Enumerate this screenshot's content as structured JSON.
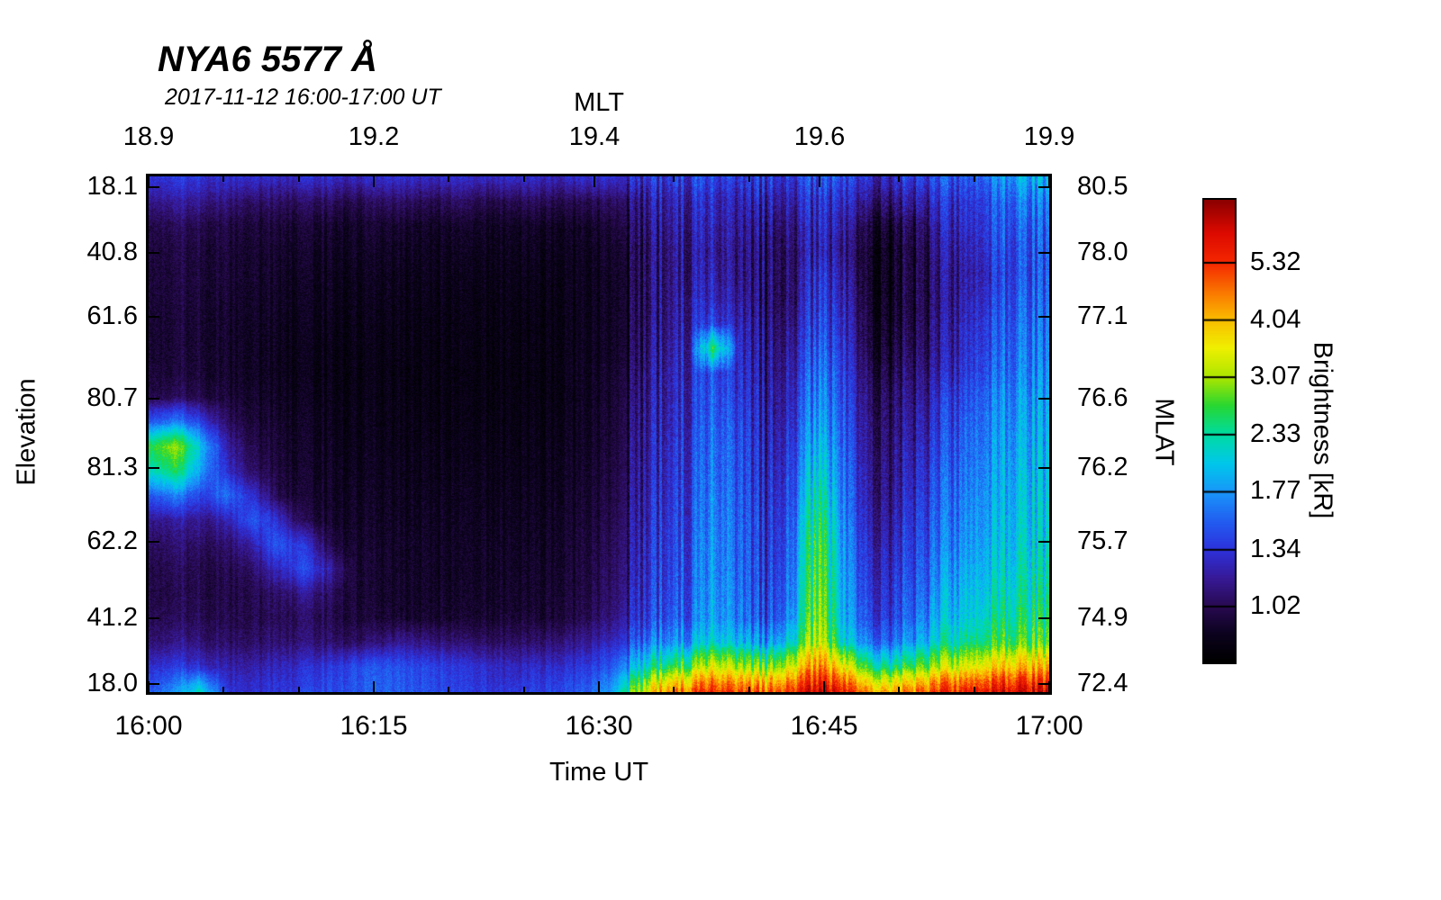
{
  "chart_data": {
    "type": "heatmap",
    "title": "NYA6 5577 Å",
    "subtitle": "2017-11-12 16:00-17:00 UT",
    "axes": {
      "top": {
        "label": "MLT",
        "ticks": [
          {
            "label": "18.9",
            "pos": 0.0
          },
          {
            "label": "19.2",
            "pos": 0.25
          },
          {
            "label": "19.4",
            "pos": 0.495
          },
          {
            "label": "19.6",
            "pos": 0.745
          },
          {
            "label": "19.9",
            "pos": 1.0
          }
        ]
      },
      "bottom": {
        "label": "Time UT",
        "ticks": [
          {
            "label": "16:00",
            "pos": 0.0
          },
          {
            "label": "16:15",
            "pos": 0.25
          },
          {
            "label": "16:30",
            "pos": 0.5
          },
          {
            "label": "16:45",
            "pos": 0.75
          },
          {
            "label": "17:00",
            "pos": 1.0
          }
        ]
      },
      "left": {
        "label": "Elevation",
        "ticks": [
          {
            "label": "18.1",
            "pos": 0.021
          },
          {
            "label": "40.8",
            "pos": 0.148
          },
          {
            "label": "61.6",
            "pos": 0.272
          },
          {
            "label": "80.7",
            "pos": 0.431
          },
          {
            "label": "81.3",
            "pos": 0.565
          },
          {
            "label": "62.2",
            "pos": 0.709
          },
          {
            "label": "41.2",
            "pos": 0.857
          },
          {
            "label": "18.0",
            "pos": 0.984
          }
        ]
      },
      "right": {
        "label": "MLAT",
        "ticks": [
          {
            "label": "80.5",
            "pos": 0.021
          },
          {
            "label": "78.0",
            "pos": 0.148
          },
          {
            "label": "77.1",
            "pos": 0.272
          },
          {
            "label": "76.6",
            "pos": 0.431
          },
          {
            "label": "76.2",
            "pos": 0.565
          },
          {
            "label": "75.7",
            "pos": 0.709
          },
          {
            "label": "74.9",
            "pos": 0.857
          },
          {
            "label": "72.4",
            "pos": 0.984
          }
        ]
      }
    },
    "colorbar": {
      "label": "Brightness [kR]",
      "scale": "log",
      "vmin": 0.78,
      "vmax": 7.2,
      "tick_values": [
        "5.32",
        "4.04",
        "3.07",
        "2.33",
        "1.77",
        "1.34",
        "1.02"
      ],
      "stops": [
        [
          0.0,
          0,
          0,
          0
        ],
        [
          0.06,
          12,
          3,
          30
        ],
        [
          0.119,
          40,
          10,
          80
        ],
        [
          0.18,
          55,
          25,
          150
        ],
        [
          0.243,
          45,
          50,
          220
        ],
        [
          0.3,
          35,
          90,
          240
        ],
        [
          0.367,
          25,
          150,
          250
        ],
        [
          0.43,
          0,
          200,
          235
        ],
        [
          0.494,
          0,
          220,
          160
        ],
        [
          0.555,
          40,
          215,
          50
        ],
        [
          0.615,
          170,
          230,
          0
        ],
        [
          0.68,
          240,
          240,
          0
        ],
        [
          0.74,
          250,
          190,
          0
        ],
        [
          0.8,
          250,
          120,
          0
        ],
        [
          0.864,
          245,
          40,
          0
        ],
        [
          0.93,
          220,
          10,
          0
        ],
        [
          1.0,
          140,
          0,
          0
        ]
      ]
    },
    "grid": {
      "comment": "Brightness in kR; rows top-to-bottom over elevation scan, cols left-to-right over 16:00-17:00 UT",
      "rows": 22,
      "cols": 36,
      "values": [
        [
          1.35,
          1.4,
          1.35,
          1.3,
          1.3,
          1.25,
          1.3,
          1.3,
          1.25,
          1.3,
          1.3,
          1.25,
          1.3,
          1.25,
          1.3,
          1.3,
          1.25,
          1.3,
          1.3,
          1.3,
          1.35,
          1.4,
          1.45,
          1.4,
          1.35,
          1.4,
          1.45,
          1.4,
          1.35,
          1.3,
          1.4,
          1.45,
          1.5,
          1.7,
          1.85,
          1.9
        ],
        [
          1.15,
          1.2,
          1.15,
          1.1,
          1.05,
          1.05,
          1.05,
          1.05,
          1.0,
          1.05,
          1.05,
          1.0,
          1.05,
          1.0,
          1.0,
          1.05,
          1.0,
          1.0,
          1.05,
          1.1,
          1.2,
          1.25,
          1.3,
          1.25,
          1.2,
          1.25,
          1.3,
          1.25,
          1.15,
          1.1,
          1.2,
          1.3,
          1.35,
          1.5,
          1.6,
          1.65
        ],
        [
          1.0,
          1.05,
          1.0,
          0.98,
          0.95,
          0.95,
          0.95,
          0.93,
          0.92,
          0.93,
          0.92,
          0.9,
          0.92,
          0.9,
          0.9,
          0.92,
          0.9,
          0.9,
          0.95,
          1.05,
          1.15,
          1.2,
          1.25,
          1.2,
          1.1,
          1.15,
          1.25,
          1.15,
          1.0,
          0.95,
          1.05,
          1.2,
          1.3,
          1.45,
          1.5,
          1.55
        ],
        [
          0.98,
          1.0,
          0.97,
          0.95,
          0.93,
          0.92,
          0.92,
          0.9,
          0.9,
          0.9,
          0.89,
          0.88,
          0.89,
          0.88,
          0.88,
          0.89,
          0.88,
          0.88,
          0.92,
          1.0,
          1.1,
          1.15,
          1.2,
          1.15,
          1.05,
          1.1,
          1.2,
          1.1,
          0.95,
          0.9,
          1.0,
          1.15,
          1.25,
          1.4,
          1.45,
          1.5
        ],
        [
          0.97,
          0.99,
          0.96,
          0.94,
          0.92,
          0.91,
          0.9,
          0.89,
          0.88,
          0.88,
          0.87,
          0.87,
          0.87,
          0.86,
          0.87,
          0.87,
          0.87,
          0.87,
          0.9,
          1.0,
          1.1,
          1.15,
          1.25,
          1.15,
          1.05,
          1.1,
          1.3,
          1.15,
          0.95,
          0.9,
          1.0,
          1.1,
          1.2,
          1.35,
          1.45,
          1.5
        ],
        [
          0.96,
          0.98,
          0.95,
          0.93,
          0.91,
          0.9,
          0.89,
          0.88,
          0.87,
          0.87,
          0.86,
          0.86,
          0.86,
          0.85,
          0.86,
          0.86,
          0.86,
          0.87,
          0.9,
          1.0,
          1.1,
          1.2,
          1.3,
          1.2,
          1.05,
          1.1,
          1.35,
          1.2,
          0.95,
          0.9,
          1.0,
          1.1,
          1.25,
          1.4,
          1.5,
          1.55
        ],
        [
          0.95,
          0.97,
          0.94,
          0.92,
          0.9,
          0.89,
          0.88,
          0.87,
          0.86,
          0.86,
          0.85,
          0.85,
          0.85,
          0.85,
          0.85,
          0.85,
          0.86,
          0.87,
          0.9,
          1.0,
          1.12,
          1.22,
          1.45,
          1.25,
          1.08,
          1.15,
          1.4,
          1.25,
          0.98,
          0.92,
          1.02,
          1.12,
          1.3,
          1.45,
          1.55,
          1.6
        ],
        [
          0.95,
          0.97,
          0.94,
          0.92,
          0.9,
          0.88,
          0.87,
          0.86,
          0.86,
          0.85,
          0.85,
          0.84,
          0.85,
          0.84,
          0.85,
          0.85,
          0.86,
          0.87,
          0.9,
          1.02,
          1.15,
          1.25,
          2.6,
          1.3,
          1.1,
          1.2,
          1.5,
          1.3,
          1.0,
          0.95,
          1.05,
          1.15,
          1.35,
          1.5,
          1.6,
          1.65
        ],
        [
          0.96,
          0.98,
          0.95,
          0.92,
          0.9,
          0.88,
          0.87,
          0.86,
          0.85,
          0.85,
          0.84,
          0.84,
          0.84,
          0.84,
          0.84,
          0.85,
          0.86,
          0.88,
          0.92,
          1.05,
          1.18,
          1.28,
          1.5,
          1.35,
          1.12,
          1.25,
          1.6,
          1.35,
          1.05,
          1.0,
          1.1,
          1.2,
          1.4,
          1.55,
          1.65,
          1.7
        ],
        [
          1.0,
          1.05,
          1.0,
          0.95,
          0.92,
          0.9,
          0.88,
          0.87,
          0.86,
          0.85,
          0.85,
          0.84,
          0.85,
          0.84,
          0.85,
          0.85,
          0.86,
          0.88,
          0.93,
          1.08,
          1.2,
          1.3,
          1.55,
          1.4,
          1.15,
          1.3,
          1.7,
          1.4,
          1.1,
          1.05,
          1.15,
          1.3,
          1.5,
          1.65,
          1.75,
          1.8
        ],
        [
          1.5,
          1.7,
          1.4,
          1.05,
          0.95,
          0.92,
          0.9,
          0.88,
          0.87,
          0.86,
          0.85,
          0.85,
          0.85,
          0.85,
          0.85,
          0.86,
          0.87,
          0.89,
          0.94,
          1.1,
          1.22,
          1.32,
          1.6,
          1.45,
          1.18,
          1.35,
          1.8,
          1.45,
          1.12,
          1.08,
          1.2,
          1.35,
          1.55,
          1.7,
          1.8,
          1.85
        ],
        [
          2.6,
          3.1,
          2.0,
          1.2,
          1.0,
          0.94,
          0.91,
          0.89,
          0.88,
          0.87,
          0.86,
          0.86,
          0.86,
          0.86,
          0.86,
          0.87,
          0.88,
          0.9,
          0.95,
          1.12,
          1.25,
          1.35,
          1.65,
          1.5,
          1.2,
          1.4,
          1.95,
          1.5,
          1.15,
          1.1,
          1.25,
          1.4,
          1.6,
          1.75,
          1.85,
          1.9
        ],
        [
          2.2,
          2.6,
          1.8,
          1.3,
          1.05,
          0.96,
          0.92,
          0.9,
          0.89,
          0.88,
          0.87,
          0.87,
          0.87,
          0.87,
          0.87,
          0.88,
          0.89,
          0.91,
          0.96,
          1.13,
          1.27,
          1.37,
          1.68,
          1.52,
          1.22,
          1.45,
          2.1,
          1.55,
          1.18,
          1.12,
          1.3,
          1.45,
          1.65,
          1.8,
          1.9,
          1.95
        ],
        [
          1.5,
          1.7,
          1.4,
          1.6,
          1.3,
          1.0,
          0.94,
          0.91,
          0.9,
          0.89,
          0.88,
          0.88,
          0.88,
          0.88,
          0.88,
          0.89,
          0.9,
          0.92,
          0.98,
          1.15,
          1.3,
          1.4,
          1.72,
          1.55,
          1.25,
          1.5,
          2.3,
          1.6,
          1.2,
          1.15,
          1.35,
          1.5,
          1.7,
          1.85,
          1.95,
          2.0
        ],
        [
          1.15,
          1.2,
          1.15,
          1.2,
          1.5,
          1.3,
          1.0,
          0.93,
          0.91,
          0.9,
          0.89,
          0.89,
          0.89,
          0.89,
          0.89,
          0.9,
          0.91,
          0.93,
          1.0,
          1.18,
          1.32,
          1.42,
          1.75,
          1.58,
          1.28,
          1.55,
          2.5,
          1.65,
          1.25,
          1.2,
          1.4,
          1.55,
          1.75,
          1.9,
          2.0,
          2.05
        ],
        [
          1.05,
          1.1,
          1.05,
          1.05,
          1.2,
          1.5,
          1.35,
          1.0,
          0.93,
          0.91,
          0.9,
          0.9,
          0.9,
          0.9,
          0.9,
          0.91,
          0.92,
          0.95,
          1.02,
          1.2,
          1.35,
          1.45,
          1.78,
          1.6,
          1.3,
          1.6,
          2.7,
          1.7,
          1.3,
          1.25,
          1.45,
          1.6,
          1.8,
          1.95,
          2.05,
          2.1
        ],
        [
          1.0,
          1.05,
          1.0,
          1.0,
          1.05,
          1.25,
          1.45,
          1.2,
          0.95,
          0.92,
          0.91,
          0.9,
          0.9,
          0.9,
          0.91,
          0.92,
          0.93,
          0.96,
          1.04,
          1.22,
          1.37,
          1.47,
          1.8,
          1.62,
          1.32,
          1.65,
          2.8,
          1.75,
          1.35,
          1.3,
          1.5,
          1.7,
          1.9,
          2.05,
          2.15,
          2.2
        ],
        [
          1.0,
          1.02,
          1.0,
          0.98,
          1.0,
          1.05,
          1.15,
          1.05,
          0.95,
          0.92,
          0.91,
          0.91,
          0.91,
          0.91,
          0.92,
          0.93,
          0.94,
          0.97,
          1.06,
          1.25,
          1.4,
          1.5,
          1.85,
          1.65,
          1.35,
          1.7,
          2.9,
          1.8,
          1.4,
          1.35,
          1.55,
          1.8,
          2.0,
          2.15,
          2.25,
          2.3
        ],
        [
          1.02,
          1.05,
          1.02,
          1.0,
          1.0,
          1.02,
          1.05,
          1.0,
          0.96,
          0.94,
          0.93,
          0.92,
          0.93,
          0.93,
          0.94,
          0.95,
          0.96,
          1.0,
          1.1,
          1.3,
          1.45,
          1.55,
          1.9,
          1.7,
          1.4,
          1.8,
          3.0,
          1.85,
          1.45,
          1.4,
          1.65,
          1.9,
          2.1,
          2.3,
          2.4,
          2.45
        ],
        [
          1.1,
          1.15,
          1.1,
          1.05,
          1.05,
          1.08,
          1.1,
          1.08,
          1.05,
          1.1,
          1.15,
          1.1,
          1.08,
          1.05,
          1.05,
          1.08,
          1.1,
          1.15,
          1.25,
          1.5,
          1.7,
          1.8,
          2.2,
          2.0,
          1.7,
          2.2,
          3.3,
          2.1,
          1.7,
          1.6,
          1.9,
          2.2,
          2.4,
          2.6,
          2.7,
          2.75
        ],
        [
          1.3,
          1.4,
          1.3,
          1.2,
          1.2,
          1.25,
          1.3,
          1.35,
          1.45,
          1.5,
          1.45,
          1.4,
          1.35,
          1.3,
          1.25,
          1.3,
          1.3,
          1.35,
          1.5,
          2.0,
          2.5,
          2.8,
          3.5,
          3.2,
          2.8,
          3.5,
          4.5,
          3.5,
          2.6,
          2.4,
          2.8,
          3.2,
          3.5,
          3.8,
          4.0,
          4.1
        ],
        [
          1.5,
          1.8,
          2.2,
          1.35,
          1.3,
          1.35,
          1.4,
          1.45,
          1.5,
          1.55,
          1.5,
          1.45,
          1.4,
          1.35,
          1.35,
          1.4,
          1.45,
          1.5,
          1.8,
          3.0,
          4.2,
          4.8,
          5.5,
          5.2,
          4.8,
          5.5,
          6.2,
          5.5,
          4.5,
          4.2,
          4.8,
          5.3,
          5.6,
          5.9,
          6.1,
          6.2
        ]
      ]
    }
  }
}
